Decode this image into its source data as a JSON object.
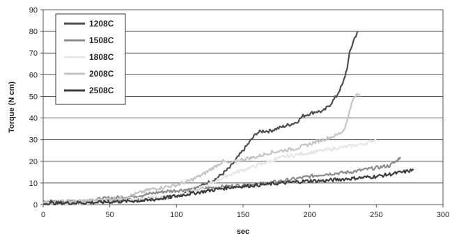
{
  "chart_data": {
    "type": "line",
    "title": "",
    "xlabel": "sec",
    "ylabel": "Torque (N cm)",
    "xlim": [
      0,
      300
    ],
    "ylim": [
      0,
      90
    ],
    "x_ticks": [
      "0",
      "50",
      "100",
      "150",
      "200",
      "250",
      "300"
    ],
    "y_ticks": [
      "0",
      "10",
      "20",
      "30",
      "40",
      "50",
      "60",
      "70",
      "80",
      "90"
    ],
    "grid": "horizontal",
    "legend_position": "top-left",
    "series": [
      {
        "name": "1208C",
        "color": "#4d4d4d",
        "points": [
          [
            0,
            1.5
          ],
          [
            20,
            1.2
          ],
          [
            40,
            1.5
          ],
          [
            60,
            2
          ],
          [
            80,
            2.5
          ],
          [
            100,
            4
          ],
          [
            110,
            6
          ],
          [
            120,
            9
          ],
          [
            130,
            12
          ],
          [
            140,
            17
          ],
          [
            145,
            21
          ],
          [
            150,
            25
          ],
          [
            155,
            29
          ],
          [
            160,
            33
          ],
          [
            165,
            34
          ],
          [
            170,
            34
          ],
          [
            175,
            35
          ],
          [
            180,
            36
          ],
          [
            185,
            37
          ],
          [
            190,
            38
          ],
          [
            195,
            41
          ],
          [
            200,
            42
          ],
          [
            205,
            43
          ],
          [
            210,
            43
          ],
          [
            215,
            46
          ],
          [
            220,
            50
          ],
          [
            225,
            56
          ],
          [
            228,
            63
          ],
          [
            230,
            70
          ],
          [
            233,
            76
          ],
          [
            236,
            80
          ]
        ]
      },
      {
        "name": "1508C",
        "color": "#8c8c8c",
        "points": [
          [
            0,
            1
          ],
          [
            25,
            1.5
          ],
          [
            50,
            3
          ],
          [
            70,
            4
          ],
          [
            90,
            6
          ],
          [
            110,
            7
          ],
          [
            130,
            8
          ],
          [
            150,
            9
          ],
          [
            170,
            10
          ],
          [
            190,
            12
          ],
          [
            210,
            14
          ],
          [
            230,
            15
          ],
          [
            250,
            17
          ],
          [
            260,
            18
          ],
          [
            265,
            20
          ],
          [
            268,
            22
          ]
        ]
      },
      {
        "name": "1808C",
        "color": "#e6e6e6",
        "points": [
          [
            0,
            0.5
          ],
          [
            40,
            1
          ],
          [
            60,
            2
          ],
          [
            80,
            3
          ],
          [
            100,
            4
          ],
          [
            110,
            6
          ],
          [
            120,
            8
          ],
          [
            130,
            11
          ],
          [
            140,
            14
          ],
          [
            150,
            16
          ],
          [
            160,
            18
          ],
          [
            170,
            20
          ],
          [
            180,
            22
          ],
          [
            190,
            23
          ],
          [
            200,
            24
          ],
          [
            210,
            25
          ],
          [
            220,
            26
          ],
          [
            230,
            27
          ],
          [
            240,
            28
          ],
          [
            250,
            30
          ]
        ]
      },
      {
        "name": "2008C",
        "color": "#c4c4c4",
        "points": [
          [
            0,
            1
          ],
          [
            20,
            1.5
          ],
          [
            40,
            2
          ],
          [
            60,
            3
          ],
          [
            70,
            5
          ],
          [
            80,
            7
          ],
          [
            90,
            8
          ],
          [
            100,
            9
          ],
          [
            110,
            11
          ],
          [
            120,
            14
          ],
          [
            130,
            18
          ],
          [
            135,
            20
          ],
          [
            140,
            19
          ],
          [
            150,
            21
          ],
          [
            160,
            22
          ],
          [
            170,
            24
          ],
          [
            180,
            25
          ],
          [
            190,
            26
          ],
          [
            200,
            28
          ],
          [
            210,
            30
          ],
          [
            220,
            32
          ],
          [
            225,
            34
          ],
          [
            228,
            38
          ],
          [
            230,
            44
          ],
          [
            233,
            49
          ],
          [
            236,
            51
          ],
          [
            238,
            50
          ]
        ]
      },
      {
        "name": "2508C",
        "color": "#3c3c3c",
        "points": [
          [
            0,
            0.5
          ],
          [
            20,
            0.8
          ],
          [
            40,
            1
          ],
          [
            60,
            1.5
          ],
          [
            80,
            2
          ],
          [
            100,
            4
          ],
          [
            120,
            6
          ],
          [
            140,
            8
          ],
          [
            150,
            8.5
          ],
          [
            160,
            9
          ],
          [
            170,
            9.5
          ],
          [
            180,
            10
          ],
          [
            190,
            10.5
          ],
          [
            200,
            11
          ],
          [
            210,
            11
          ],
          [
            220,
            11.5
          ],
          [
            230,
            12
          ],
          [
            240,
            12.5
          ],
          [
            250,
            13
          ],
          [
            260,
            14
          ],
          [
            270,
            15
          ],
          [
            278,
            16
          ]
        ]
      }
    ]
  }
}
